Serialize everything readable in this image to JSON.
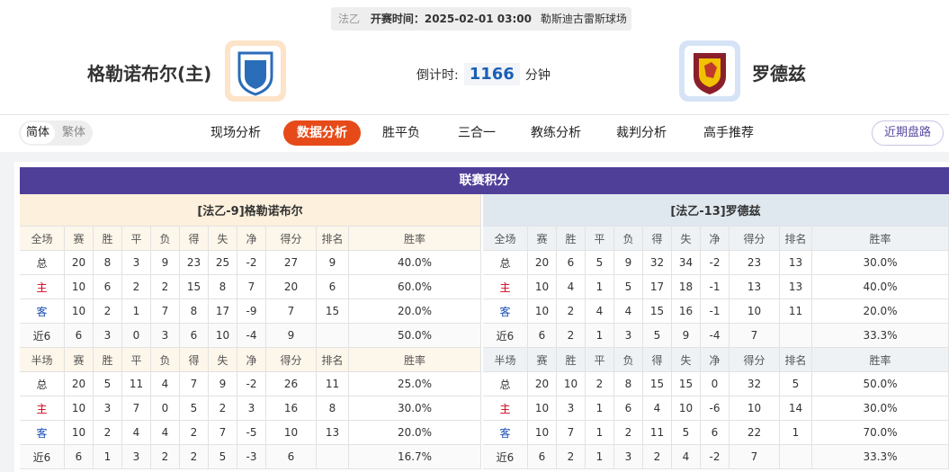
{
  "header": {
    "league": "法乙",
    "kickoff_label": "开赛时间：",
    "kickoff": "2025-02-01 03:00",
    "venue": "勒斯迪古雷斯球场",
    "home": "格勒诺布尔(主)",
    "away": "罗德兹",
    "countdown_label": "倒计时:",
    "countdown": 1166,
    "countdown_unit": "分钟"
  },
  "nav": {
    "scripts": [
      "简体",
      "繁体"
    ],
    "tabs": [
      "现场分析",
      "数据分析",
      "胜平负",
      "三合一",
      "教练分析",
      "裁判分析",
      "高手推荐"
    ],
    "active_tab": 1,
    "side_button": "近期盘路"
  },
  "standings": {
    "title": "联赛积分",
    "full_columns": [
      "全场",
      "赛",
      "胜",
      "平",
      "负",
      "得",
      "失",
      "净",
      "得分",
      "排名",
      "胜率"
    ],
    "half_columns": [
      "半场",
      "赛",
      "胜",
      "平",
      "负",
      "得",
      "失",
      "净",
      "得分",
      "排名",
      "胜率"
    ],
    "teams": [
      {
        "name": "[法乙-9]格勒诺布尔",
        "full_rows": [
          [
            "总",
            20,
            8,
            3,
            9,
            23,
            25,
            -2,
            27,
            9,
            "40.0%"
          ],
          [
            "主",
            10,
            6,
            2,
            2,
            15,
            8,
            7,
            20,
            6,
            "60.0%"
          ],
          [
            "客",
            10,
            2,
            1,
            7,
            8,
            17,
            -9,
            7,
            15,
            "20.0%"
          ],
          [
            "近6",
            6,
            3,
            0,
            3,
            6,
            10,
            -4,
            9,
            null,
            "50.0%"
          ]
        ],
        "half_rows": [
          [
            "总",
            20,
            5,
            11,
            4,
            7,
            9,
            -2,
            26,
            11,
            "25.0%"
          ],
          [
            "主",
            10,
            3,
            7,
            0,
            5,
            2,
            3,
            16,
            8,
            "30.0%"
          ],
          [
            "客",
            10,
            2,
            4,
            4,
            2,
            7,
            -5,
            10,
            13,
            "20.0%"
          ],
          [
            "近6",
            6,
            1,
            3,
            2,
            2,
            5,
            -3,
            6,
            null,
            "16.7%"
          ]
        ]
      },
      {
        "name": "[法乙-13]罗德兹",
        "full_rows": [
          [
            "总",
            20,
            6,
            5,
            9,
            32,
            34,
            -2,
            23,
            13,
            "30.0%"
          ],
          [
            "主",
            10,
            4,
            1,
            5,
            17,
            18,
            -1,
            13,
            13,
            "40.0%"
          ],
          [
            "客",
            10,
            2,
            4,
            4,
            15,
            16,
            -1,
            10,
            11,
            "20.0%"
          ],
          [
            "近6",
            6,
            2,
            1,
            3,
            5,
            9,
            -4,
            7,
            null,
            "33.3%"
          ]
        ],
        "half_rows": [
          [
            "总",
            20,
            10,
            2,
            8,
            15,
            15,
            0,
            32,
            5,
            "50.0%"
          ],
          [
            "主",
            10,
            3,
            1,
            6,
            4,
            10,
            -6,
            10,
            14,
            "30.0%"
          ],
          [
            "客",
            10,
            7,
            1,
            2,
            11,
            5,
            6,
            22,
            1,
            "70.0%"
          ],
          [
            "近6",
            6,
            2,
            1,
            3,
            2,
            4,
            -2,
            7,
            null,
            "33.3%"
          ]
        ]
      }
    ]
  }
}
